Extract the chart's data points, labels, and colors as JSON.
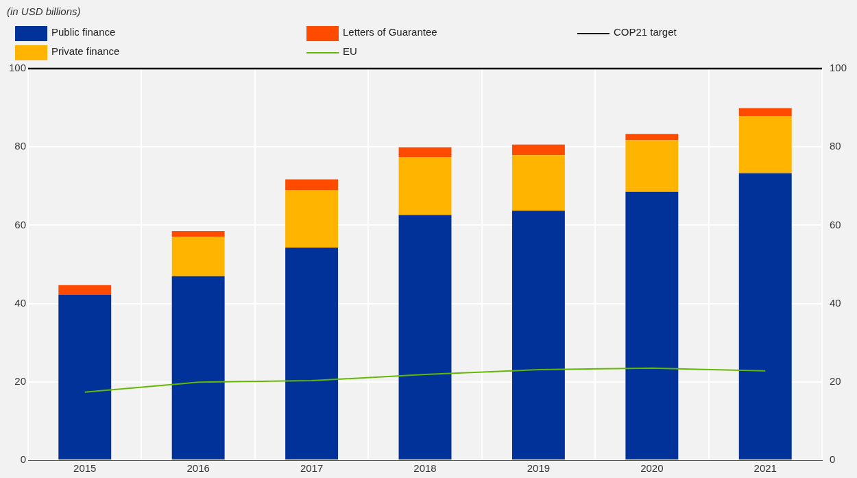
{
  "chart_data": {
    "type": "bar",
    "subtitle": "(in USD billions)",
    "categories": [
      "2015",
      "2016",
      "2017",
      "2018",
      "2019",
      "2020",
      "2021"
    ],
    "stacked": true,
    "series": [
      {
        "name": "Public finance",
        "color": "#003299",
        "values": [
          42.2,
          47.0,
          54.3,
          62.6,
          63.7,
          68.5,
          73.3
        ]
      },
      {
        "name": "Private finance",
        "color": "#ffb400",
        "values": [
          null,
          10.1,
          14.6,
          14.8,
          14.2,
          13.2,
          14.6
        ]
      },
      {
        "name": "Letters of Guarantee",
        "color": "#ff4b00",
        "values": [
          2.5,
          1.4,
          2.8,
          2.5,
          2.7,
          1.6,
          2.0
        ]
      },
      {
        "name": "EU",
        "type": "line",
        "color": "#65b800",
        "values": [
          17.4,
          19.9,
          20.3,
          21.9,
          23.1,
          23.5,
          22.8
        ]
      }
    ],
    "ref_lines": [
      {
        "axis": "y",
        "value": 100,
        "label": "COP21 target",
        "color": "#000000"
      }
    ],
    "ylim": [
      0,
      100
    ],
    "yticks": [
      0,
      20,
      40,
      60,
      80,
      100
    ],
    "y2lim": [
      0,
      100
    ],
    "y2ticks": [
      0,
      20,
      40,
      60,
      80,
      100
    ],
    "grid": true,
    "legend": "top",
    "marker": "none"
  }
}
